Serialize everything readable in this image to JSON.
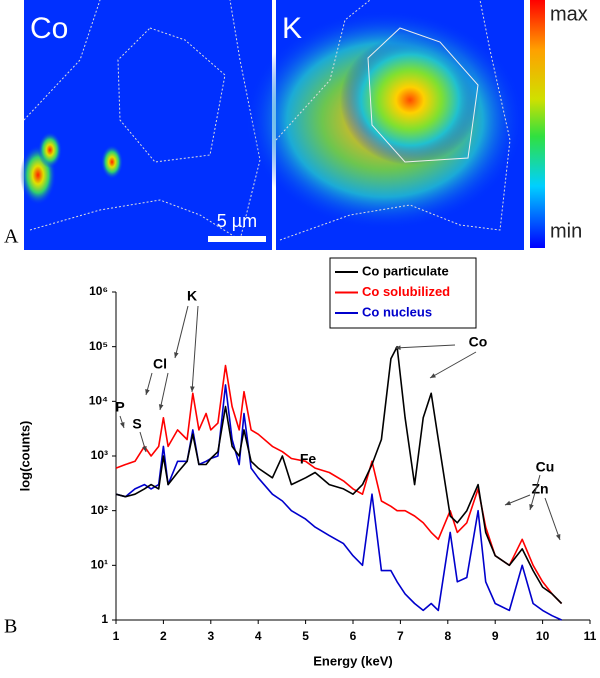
{
  "panel_a": {
    "label": "A",
    "maps": [
      {
        "label": "Co"
      },
      {
        "label": "K"
      }
    ],
    "scale_bar": "5 µm",
    "colorbar": {
      "max": "max",
      "min": "min"
    }
  },
  "panel_b": {
    "label": "B"
  },
  "chart_data": {
    "type": "line",
    "xlabel": "Energy (keV)",
    "ylabel": "log(counts)",
    "log_y": true,
    "legend": "upper right",
    "xlim": [
      1,
      11
    ],
    "xticks": [
      1,
      2,
      3,
      4,
      5,
      6,
      7,
      8,
      9,
      10,
      11
    ],
    "ylim": [
      1,
      1000000
    ],
    "yticks": [
      1,
      {
        "value": 10,
        "label": "10¹"
      },
      {
        "value": 100,
        "label": "10²"
      },
      {
        "value": 1000,
        "label": "10³"
      },
      {
        "value": 10000,
        "label": "10⁴"
      },
      {
        "value": 100000,
        "label": "10⁵"
      },
      {
        "value": 1000000,
        "label": "10⁶"
      }
    ],
    "annotations": [
      "P",
      "S",
      "Cl",
      "K",
      "Fe",
      "Co",
      "Cu",
      "Zn"
    ],
    "x": [
      1.0,
      1.2,
      1.4,
      1.6,
      1.74,
      1.9,
      2.0,
      2.1,
      2.3,
      2.5,
      2.62,
      2.75,
      2.9,
      3.0,
      3.15,
      3.31,
      3.45,
      3.6,
      3.7,
      3.85,
      4.0,
      4.3,
      4.51,
      4.7,
      5.0,
      5.2,
      5.5,
      5.8,
      6.0,
      6.2,
      6.4,
      6.6,
      6.8,
      6.93,
      7.1,
      7.3,
      7.48,
      7.65,
      7.8,
      8.05,
      8.2,
      8.4,
      8.64,
      8.8,
      9.0,
      9.3,
      9.57,
      9.8,
      10.0,
      10.2,
      10.4
    ],
    "series": [
      {
        "name": "Co particulate",
        "color": "#000000",
        "values": [
          200,
          180,
          200,
          250,
          300,
          250,
          1000,
          300,
          500,
          800,
          2500,
          700,
          700,
          900,
          1200,
          8000,
          1500,
          1000,
          3000,
          800,
          600,
          400,
          1000,
          300,
          400,
          500,
          300,
          250,
          200,
          300,
          700,
          2000,
          60000,
          100000,
          5000,
          300,
          5000,
          14000,
          2000,
          80,
          60,
          100,
          300,
          40,
          15,
          10,
          20,
          8,
          4,
          3,
          2
        ]
      },
      {
        "name": "Co solubilized",
        "color": "#ff0000",
        "values": [
          600,
          700,
          800,
          1500,
          1000,
          1500,
          5000,
          1500,
          3000,
          2000,
          14000,
          3000,
          6000,
          3000,
          4000,
          45000,
          8000,
          3000,
          15000,
          3000,
          2500,
          1500,
          1200,
          900,
          800,
          600,
          500,
          350,
          250,
          200,
          800,
          150,
          120,
          100,
          100,
          80,
          60,
          40,
          30,
          100,
          40,
          60,
          250,
          50,
          15,
          10,
          30,
          10,
          5,
          3,
          2
        ]
      },
      {
        "name": "Co nucleus",
        "color": "#0000cc",
        "values": [
          200,
          180,
          250,
          300,
          250,
          300,
          1500,
          300,
          800,
          800,
          3000,
          700,
          800,
          900,
          1000,
          20000,
          2000,
          700,
          6000,
          600,
          400,
          200,
          150,
          100,
          70,
          50,
          35,
          25,
          15,
          10,
          200,
          8,
          8,
          5,
          3,
          2,
          1.5,
          2,
          1.5,
          40,
          5,
          6,
          100,
          5,
          2,
          1.5,
          10,
          2,
          1.5,
          1.2,
          1
        ]
      }
    ]
  }
}
